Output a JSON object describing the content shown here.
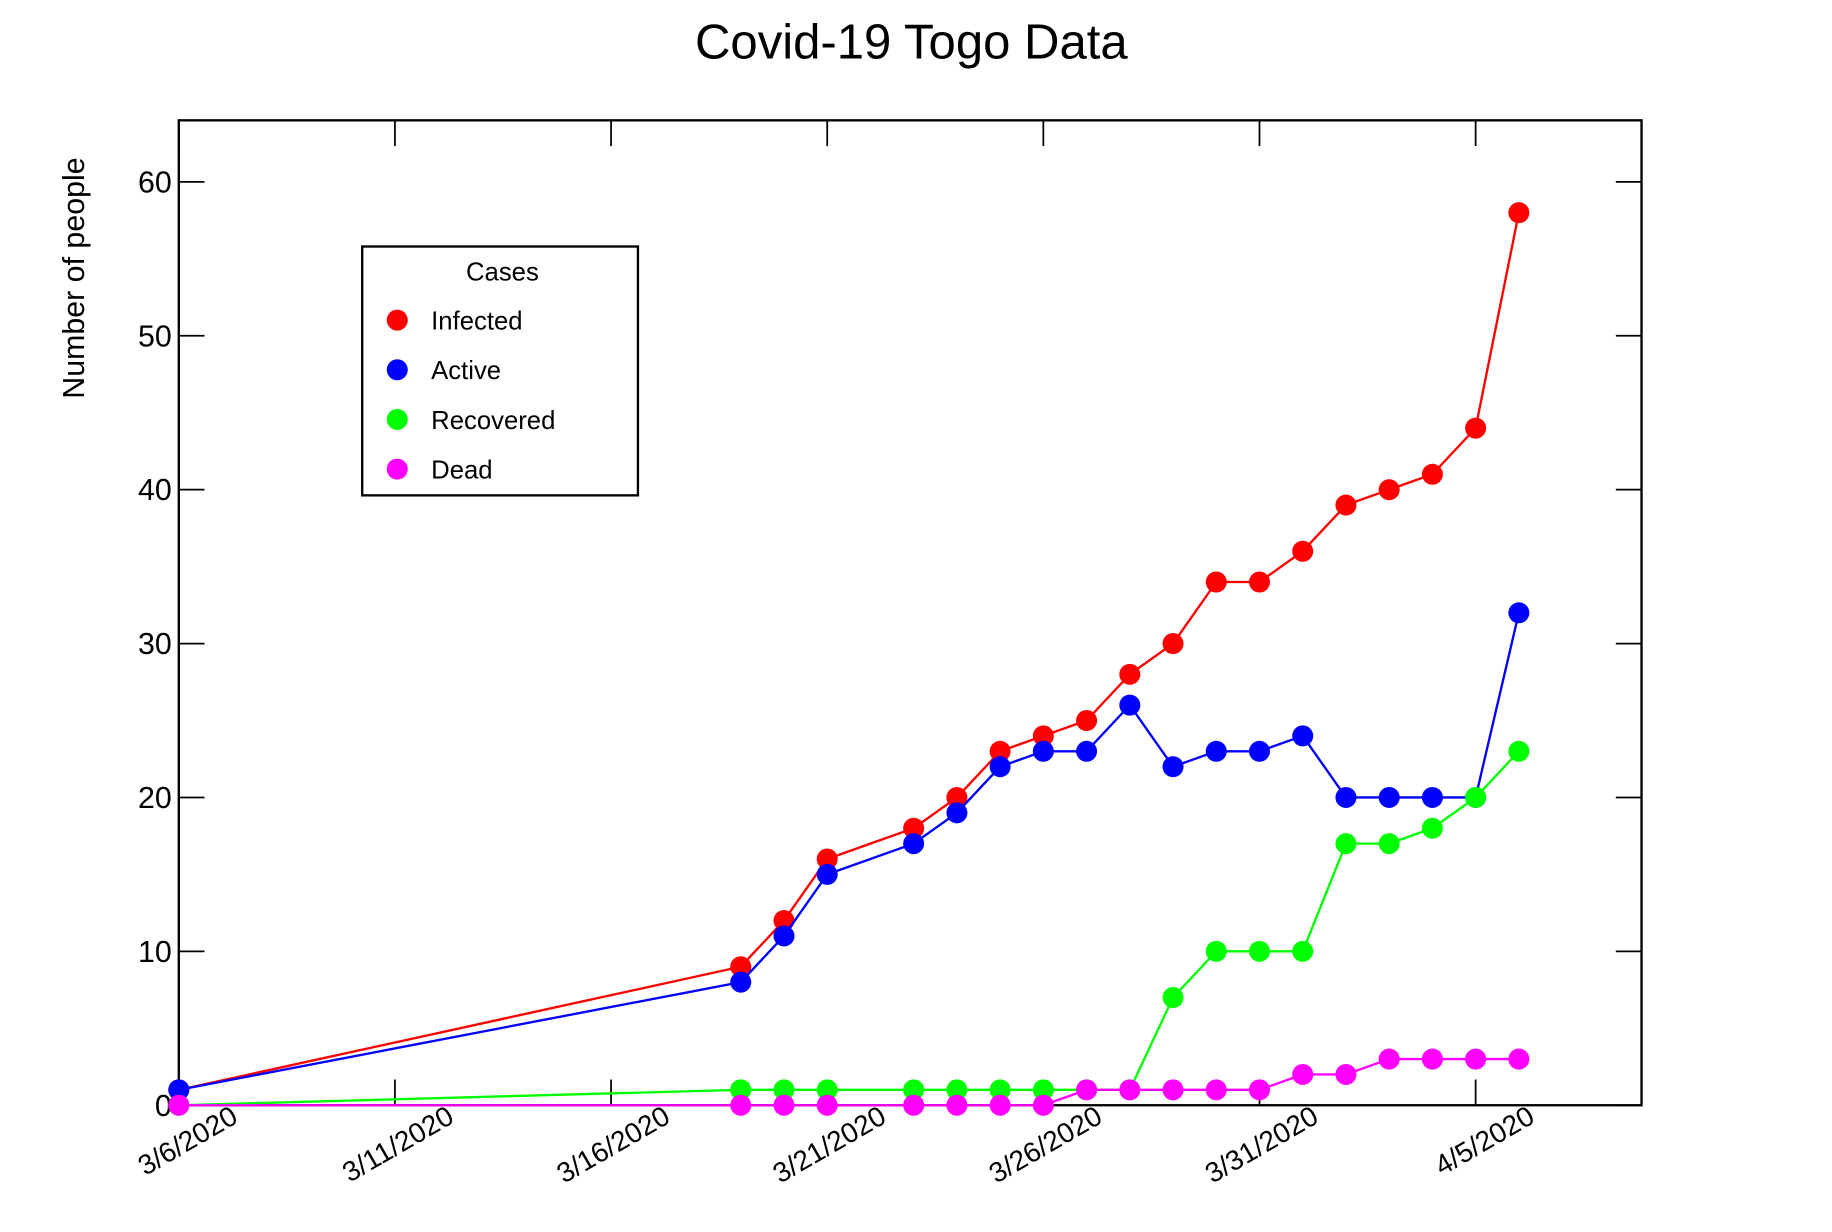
{
  "chart_data": {
    "type": "line",
    "title": "Covid-19 Togo Data",
    "ylabel": "Number of people",
    "legend_title": "Cases",
    "legend": "upper left",
    "x": [
      "3/6/2020",
      "3/19/2020",
      "3/20/2020",
      "3/21/2020",
      "3/23/2020",
      "3/24/2020",
      "3/25/2020",
      "3/26/2020",
      "3/27/2020",
      "3/28/2020",
      "3/29/2020",
      "3/30/2020",
      "3/31/2020",
      "4/1/2020",
      "4/2/2020",
      "4/3/2020",
      "4/4/2020",
      "4/5/2020",
      "4/6/2020"
    ],
    "series": [
      {
        "name": "Infected",
        "color": "#ff0000",
        "values": [
          1,
          9,
          12,
          16,
          18,
          20,
          23,
          24,
          25,
          28,
          30,
          34,
          34,
          36,
          39,
          40,
          41,
          44,
          58
        ]
      },
      {
        "name": "Active",
        "color": "#0000ff",
        "values": [
          1,
          8,
          11,
          15,
          17,
          19,
          22,
          23,
          23,
          26,
          22,
          23,
          23,
          24,
          20,
          20,
          20,
          20,
          32
        ]
      },
      {
        "name": "Recovered",
        "color": "#00ff00",
        "values": [
          0,
          1,
          1,
          1,
          1,
          1,
          1,
          1,
          1,
          1,
          7,
          10,
          10,
          10,
          17,
          17,
          18,
          20,
          23
        ]
      },
      {
        "name": "Dead",
        "color": "#ff00ff",
        "values": [
          0,
          0,
          0,
          0,
          0,
          0,
          0,
          0,
          1,
          1,
          1,
          1,
          1,
          2,
          2,
          3,
          3,
          3,
          3
        ]
      }
    ],
    "xlim": [
      "3/6/2020",
      "4/8/2020"
    ],
    "xticks": [
      "3/6/2020",
      "3/11/2020",
      "3/16/2020",
      "3/21/2020",
      "3/26/2020",
      "3/31/2020",
      "4/5/2020"
    ],
    "ylim": [
      0,
      64
    ],
    "yticks": [
      0,
      10,
      20,
      30,
      40,
      50,
      60
    ]
  }
}
